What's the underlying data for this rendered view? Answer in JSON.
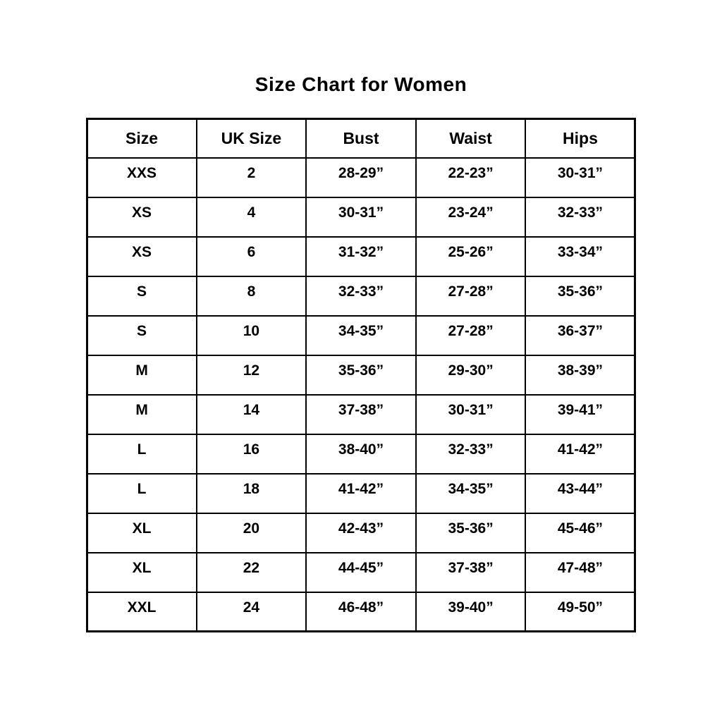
{
  "page_title": "Size Chart for Women",
  "chart_data": {
    "type": "table",
    "title": "Size Chart for Women",
    "columns": [
      "Size",
      "UK Size",
      "Bust",
      "Waist",
      "Hips"
    ],
    "column_keys": [
      "size",
      "uk-size",
      "bust",
      "waist",
      "hips"
    ],
    "rows": [
      [
        "XXS",
        "2",
        "28-29”",
        "22-23”",
        "30-31”"
      ],
      [
        "XS",
        "4",
        "30-31”",
        "23-24”",
        "32-33”"
      ],
      [
        "XS",
        "6",
        "31-32”",
        "25-26”",
        "33-34”"
      ],
      [
        "S",
        "8",
        "32-33”",
        "27-28”",
        "35-36”"
      ],
      [
        "S",
        "10",
        "34-35”",
        "27-28”",
        "36-37”"
      ],
      [
        "M",
        "12",
        "35-36”",
        "29-30”",
        "38-39”"
      ],
      [
        "M",
        "14",
        "37-38”",
        "30-31”",
        "39-41”"
      ],
      [
        "L",
        "16",
        "38-40”",
        "32-33”",
        "41-42”"
      ],
      [
        "L",
        "18",
        "41-42”",
        "34-35”",
        "43-44”"
      ],
      [
        "XL",
        "20",
        "42-43”",
        "35-36”",
        "45-46”"
      ],
      [
        "XL",
        "22",
        "44-45”",
        "37-38”",
        "47-48”"
      ],
      [
        "XXL",
        "24",
        "46-48”",
        "39-40”",
        "49-50”"
      ]
    ],
    "layout": {
      "grid": true,
      "header_position": "top"
    },
    "colors": {
      "text": "#000000",
      "border": "#000000",
      "background": "#ffffff"
    }
  }
}
